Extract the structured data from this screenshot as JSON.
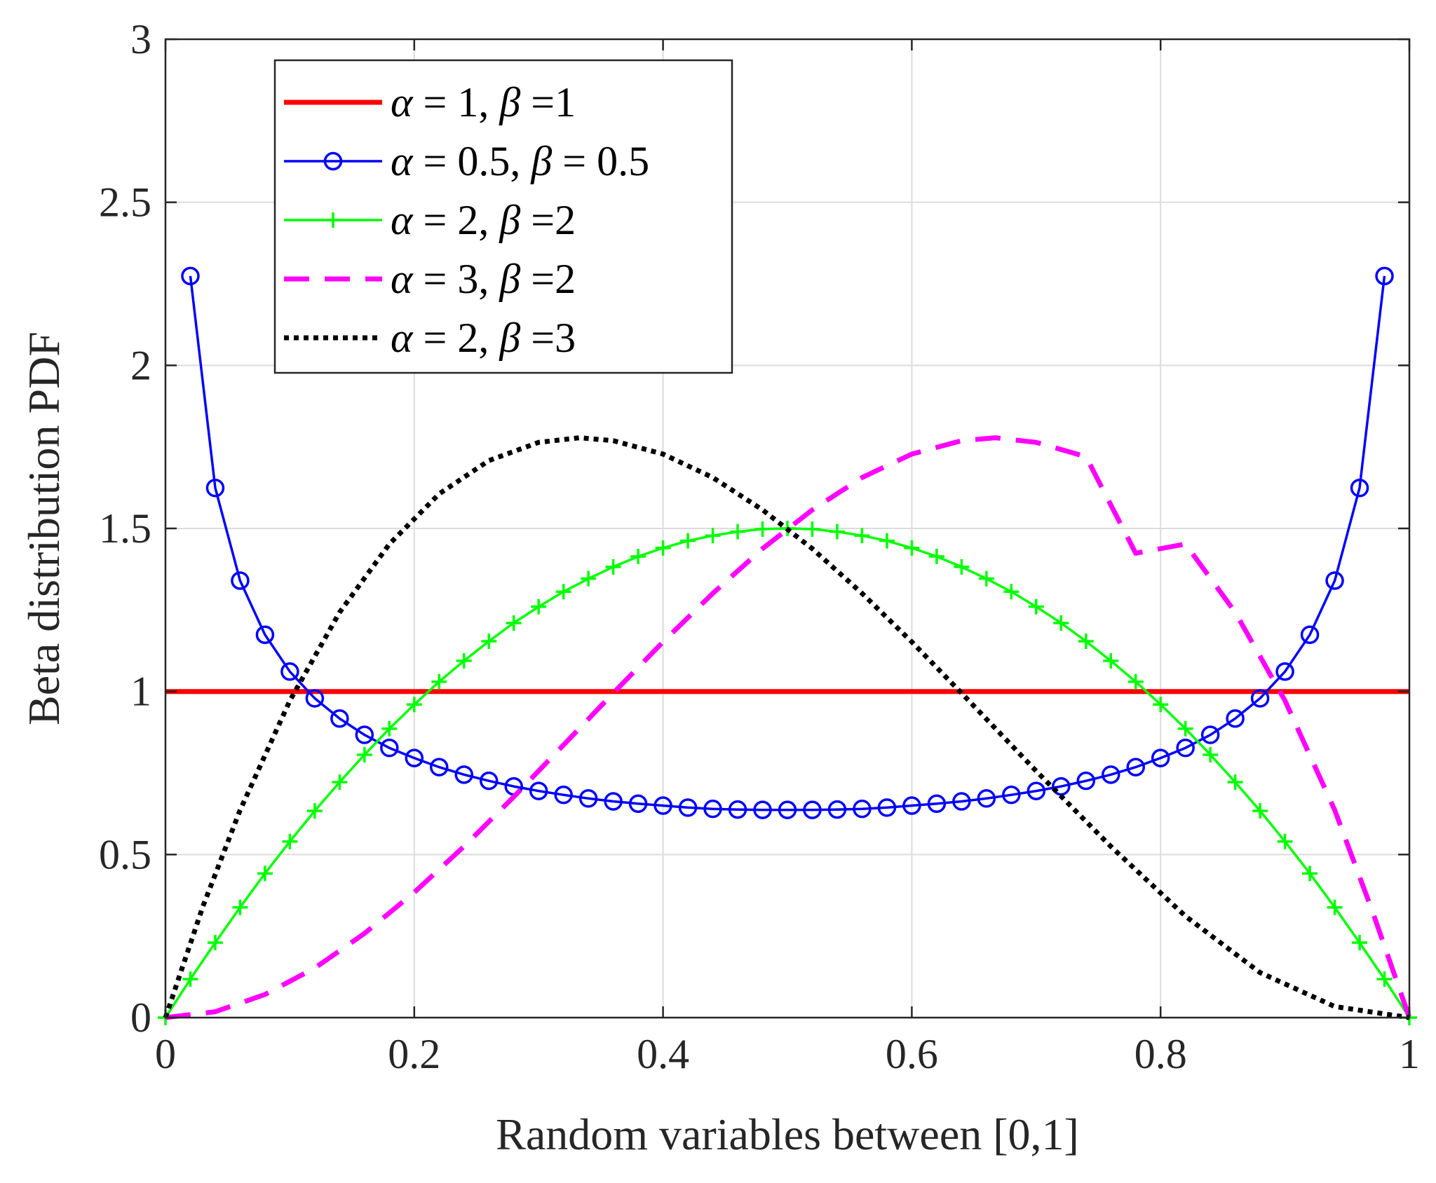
{
  "chart_data": {
    "type": "line",
    "title": "",
    "xlabel": "Random variables between [0,1]",
    "ylabel": "Beta distribution PDF",
    "xlim": [
      0,
      1
    ],
    "ylim": [
      0,
      3
    ],
    "xticks": [
      0,
      0.2,
      0.4,
      0.6,
      0.8,
      1
    ],
    "xtick_labels": [
      "0",
      "0.2",
      "0.4",
      "0.6",
      "0.8",
      "1"
    ],
    "yticks": [
      0,
      0.5,
      1,
      1.5,
      2,
      2.5,
      3
    ],
    "ytick_labels": [
      "0",
      "0.5",
      "1",
      "1.5",
      "2",
      "2.5",
      "3"
    ],
    "grid": true,
    "legend_position": "top-left",
    "series": [
      {
        "name": "α = 1, β =1",
        "legend": {
          "alpha_sym": "α",
          "beta_sym": "β",
          "pre": " = 1, ",
          "post": " =1"
        },
        "alpha": 1,
        "beta": 1,
        "color": "#ff0000",
        "style": "solid",
        "marker": "none",
        "x": [
          0,
          1
        ],
        "y": [
          1,
          1
        ]
      },
      {
        "name": "α = 0.5, β = 0.5",
        "legend": {
          "alpha_sym": "α",
          "beta_sym": "β",
          "pre": " = 0.5, ",
          "post": " = 0.5"
        },
        "alpha": 0.5,
        "beta": 0.5,
        "color": "#0000ff",
        "style": "solid",
        "marker": "circle",
        "x": [
          0.02,
          0.04,
          0.06,
          0.08,
          0.1,
          0.12,
          0.14,
          0.16,
          0.18,
          0.2,
          0.22,
          0.24,
          0.26,
          0.28,
          0.3,
          0.32,
          0.34,
          0.36,
          0.38,
          0.4,
          0.42,
          0.44,
          0.46,
          0.48,
          0.5,
          0.52,
          0.54,
          0.56,
          0.58,
          0.6,
          0.62,
          0.64,
          0.66,
          0.68,
          0.7,
          0.72,
          0.74,
          0.76,
          0.78,
          0.8,
          0.82,
          0.84,
          0.86,
          0.88,
          0.9,
          0.92,
          0.94,
          0.96,
          0.98
        ],
        "y": [
          2.274,
          1.624,
          1.34,
          1.174,
          1.061,
          0.979,
          0.917,
          0.867,
          0.827,
          0.796,
          0.768,
          0.745,
          0.726,
          0.709,
          0.695,
          0.683,
          0.672,
          0.663,
          0.656,
          0.65,
          0.644,
          0.64,
          0.638,
          0.637,
          0.637,
          0.637,
          0.638,
          0.64,
          0.644,
          0.65,
          0.656,
          0.663,
          0.672,
          0.683,
          0.695,
          0.709,
          0.726,
          0.745,
          0.768,
          0.796,
          0.827,
          0.867,
          0.917,
          0.979,
          1.061,
          1.174,
          1.34,
          1.624,
          2.274
        ]
      },
      {
        "name": "α = 2, β =2",
        "legend": {
          "alpha_sym": "α",
          "beta_sym": "β",
          "pre": " = 2, ",
          "post": " =2"
        },
        "alpha": 2,
        "beta": 2,
        "color": "#00ff00",
        "style": "solid",
        "marker": "plus",
        "x": [
          0,
          0.02,
          0.04,
          0.06,
          0.08,
          0.1,
          0.12,
          0.14,
          0.16,
          0.18,
          0.2,
          0.22,
          0.24,
          0.26,
          0.28,
          0.3,
          0.32,
          0.34,
          0.36,
          0.38,
          0.4,
          0.42,
          0.44,
          0.46,
          0.48,
          0.5,
          0.52,
          0.54,
          0.56,
          0.58,
          0.6,
          0.62,
          0.64,
          0.66,
          0.68,
          0.7,
          0.72,
          0.74,
          0.76,
          0.78,
          0.8,
          0.82,
          0.84,
          0.86,
          0.88,
          0.9,
          0.92,
          0.94,
          0.96,
          0.98,
          1
        ],
        "y": [
          0,
          0.118,
          0.23,
          0.338,
          0.442,
          0.54,
          0.634,
          0.722,
          0.806,
          0.886,
          0.96,
          1.03,
          1.094,
          1.154,
          1.21,
          1.26,
          1.306,
          1.346,
          1.382,
          1.414,
          1.44,
          1.462,
          1.478,
          1.49,
          1.498,
          1.5,
          1.498,
          1.49,
          1.478,
          1.462,
          1.44,
          1.414,
          1.382,
          1.346,
          1.306,
          1.26,
          1.21,
          1.154,
          1.094,
          1.03,
          0.96,
          0.886,
          0.806,
          0.722,
          0.634,
          0.54,
          0.442,
          0.338,
          0.23,
          0.118,
          0
        ]
      },
      {
        "name": "α = 3, β =2",
        "legend": {
          "alpha_sym": "α",
          "beta_sym": "β",
          "pre": " = 3, ",
          "post": " =2"
        },
        "alpha": 3,
        "beta": 2,
        "color": "#ff00ff",
        "style": "dashed",
        "marker": "none",
        "x": [
          0,
          0.04,
          0.08,
          0.12,
          0.16,
          0.2,
          0.24,
          0.28,
          0.32,
          0.36,
          0.4,
          0.44,
          0.48,
          0.52,
          0.56,
          0.6,
          0.64,
          0.667,
          0.7,
          0.74,
          0.78,
          0.82,
          0.86,
          0.9,
          0.94,
          0.97,
          1
        ],
        "y": [
          0,
          0.018,
          0.071,
          0.152,
          0.258,
          0.384,
          0.525,
          0.677,
          0.836,
          0.995,
          1.152,
          1.301,
          1.438,
          1.557,
          1.656,
          1.728,
          1.769,
          1.778,
          1.764,
          1.72,
          1.424,
          1.452,
          1.243,
          0.972,
          0.636,
          0.329,
          0
        ]
      },
      {
        "name": "α = 2, β =3",
        "legend": {
          "alpha_sym": "α",
          "beta_sym": "β",
          "pre": " = 2, ",
          "post": " =3"
        },
        "alpha": 2,
        "beta": 3,
        "color": "#000000",
        "style": "dotted",
        "marker": "none",
        "x": [
          0,
          0.03,
          0.06,
          0.1,
          0.14,
          0.18,
          0.22,
          0.26,
          0.3,
          0.333,
          0.36,
          0.4,
          0.44,
          0.48,
          0.52,
          0.56,
          0.6,
          0.64,
          0.7,
          0.76,
          0.82,
          0.88,
          0.94,
          1
        ],
        "y": [
          0,
          0.34,
          0.636,
          0.972,
          1.243,
          1.452,
          1.606,
          1.708,
          1.764,
          1.778,
          1.769,
          1.728,
          1.656,
          1.557,
          1.438,
          1.301,
          1.152,
          0.995,
          0.756,
          0.525,
          0.311,
          0.138,
          0.034,
          0
        ]
      }
    ]
  }
}
